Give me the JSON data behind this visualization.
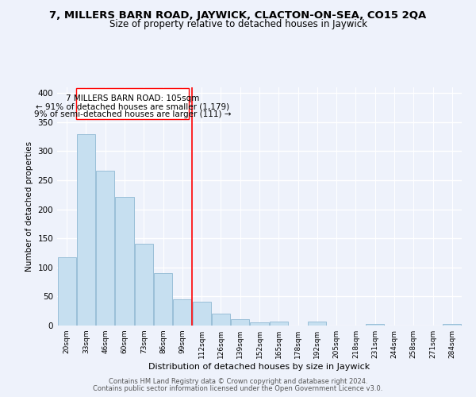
{
  "title": "7, MILLERS BARN ROAD, JAYWICK, CLACTON-ON-SEA, CO15 2QA",
  "subtitle": "Size of property relative to detached houses in Jaywick",
  "xlabel": "Distribution of detached houses by size in Jaywick",
  "ylabel": "Number of detached properties",
  "footer_line1": "Contains HM Land Registry data © Crown copyright and database right 2024.",
  "footer_line2": "Contains public sector information licensed under the Open Government Licence v3.0.",
  "bin_labels": [
    "20sqm",
    "33sqm",
    "46sqm",
    "60sqm",
    "73sqm",
    "86sqm",
    "99sqm",
    "112sqm",
    "126sqm",
    "139sqm",
    "152sqm",
    "165sqm",
    "178sqm",
    "192sqm",
    "205sqm",
    "218sqm",
    "231sqm",
    "244sqm",
    "258sqm",
    "271sqm",
    "284sqm"
  ],
  "bar_values": [
    118,
    330,
    267,
    222,
    141,
    90,
    45,
    41,
    20,
    11,
    5,
    7,
    0,
    7,
    0,
    0,
    3,
    0,
    0,
    0,
    3
  ],
  "bar_color": "#c6dff0",
  "bar_edge_color": "#9abfd8",
  "vline_x_index": 6.5,
  "vline_color": "red",
  "ann_line1": "7 MILLERS BARN ROAD: 105sqm",
  "ann_line2": "← 91% of detached houses are smaller (1,179)",
  "ann_line3": "9% of semi-detached houses are larger (111) →",
  "ylim": [
    0,
    410
  ],
  "yticks": [
    0,
    50,
    100,
    150,
    200,
    250,
    300,
    350,
    400
  ],
  "background_color": "#eef2fb",
  "grid_color": "white",
  "title_fontsize": 9.5,
  "subtitle_fontsize": 8.5
}
